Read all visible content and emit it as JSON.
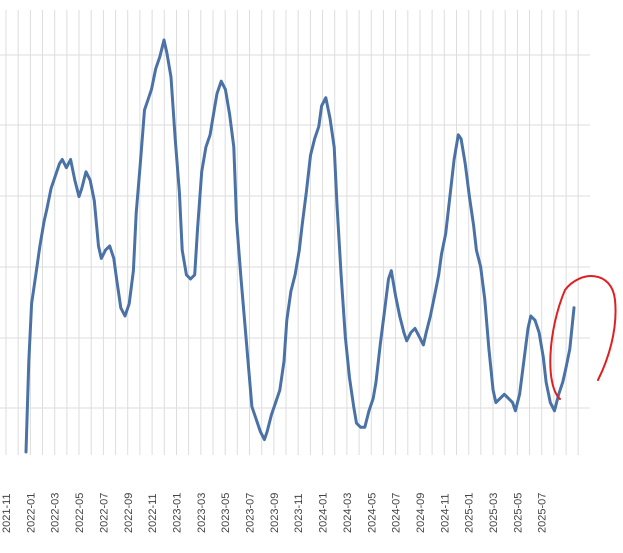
{
  "chart_data": {
    "type": "line",
    "title": "",
    "xlabel": "",
    "ylabel": "",
    "grid": true,
    "colors": {
      "line": "#4a72a6",
      "grid": "#dddddd",
      "annotation": "#e02020"
    },
    "x_tick_labels": [
      "2021-11",
      "2022-01",
      "2022-03",
      "2022-05",
      "2022-07",
      "2022-09",
      "2022-11",
      "2023-01",
      "2023-03",
      "2023-05",
      "2023-07",
      "2023-09",
      "2023-11",
      "2024-01",
      "2024-03",
      "2024-05",
      "2024-07",
      "2024-09",
      "2024-11",
      "2025-01",
      "2025-03",
      "2025-05",
      "2025-07"
    ],
    "y_range_relative": [
      0,
      1
    ],
    "series": [
      {
        "values_relative": [
          [
            2022.05,
            0.0
          ],
          [
            2022.07,
            0.22
          ],
          [
            2022.09,
            0.36
          ],
          [
            2022.12,
            0.43
          ],
          [
            2022.15,
            0.5
          ],
          [
            2022.18,
            0.56
          ],
          [
            2022.2,
            0.59
          ],
          [
            2022.23,
            0.64
          ],
          [
            2022.26,
            0.67
          ],
          [
            2022.29,
            0.7
          ],
          [
            2022.31,
            0.71
          ],
          [
            2022.34,
            0.69
          ],
          [
            2022.37,
            0.71
          ],
          [
            2022.4,
            0.66
          ],
          [
            2022.43,
            0.62
          ],
          [
            2022.45,
            0.64
          ],
          [
            2022.48,
            0.68
          ],
          [
            2022.51,
            0.66
          ],
          [
            2022.54,
            0.61
          ],
          [
            2022.57,
            0.5
          ],
          [
            2022.59,
            0.47
          ],
          [
            2022.62,
            0.49
          ],
          [
            2022.65,
            0.5
          ],
          [
            2022.68,
            0.47
          ],
          [
            2022.7,
            0.42
          ],
          [
            2022.73,
            0.35
          ],
          [
            2022.76,
            0.33
          ],
          [
            2022.79,
            0.36
          ],
          [
            2022.82,
            0.44
          ],
          [
            2022.84,
            0.58
          ],
          [
            2022.87,
            0.7
          ],
          [
            2022.9,
            0.83
          ],
          [
            2022.93,
            0.86
          ],
          [
            2022.95,
            0.88
          ],
          [
            2022.98,
            0.93
          ],
          [
            2023.01,
            0.96
          ],
          [
            2023.04,
            1.0
          ],
          [
            2023.06,
            0.97
          ],
          [
            2023.09,
            0.91
          ],
          [
            2023.12,
            0.76
          ],
          [
            2023.15,
            0.63
          ],
          [
            2023.17,
            0.49
          ],
          [
            2023.2,
            0.43
          ],
          [
            2023.23,
            0.42
          ],
          [
            2023.26,
            0.43
          ],
          [
            2023.28,
            0.54
          ],
          [
            2023.31,
            0.68
          ],
          [
            2023.34,
            0.74
          ],
          [
            2023.37,
            0.77
          ],
          [
            2023.4,
            0.83
          ],
          [
            2023.42,
            0.87
          ],
          [
            2023.45,
            0.9
          ],
          [
            2023.48,
            0.88
          ],
          [
            2023.51,
            0.82
          ],
          [
            2023.54,
            0.74
          ],
          [
            2023.56,
            0.56
          ],
          [
            2023.59,
            0.43
          ],
          [
            2023.62,
            0.31
          ],
          [
            2023.65,
            0.19
          ],
          [
            2023.67,
            0.11
          ],
          [
            2023.7,
            0.08
          ],
          [
            2023.73,
            0.05
          ],
          [
            2023.76,
            0.03
          ],
          [
            2023.78,
            0.05
          ],
          [
            2023.81,
            0.09
          ],
          [
            2023.84,
            0.12
          ],
          [
            2023.87,
            0.15
          ],
          [
            2023.9,
            0.22
          ],
          [
            2023.92,
            0.32
          ],
          [
            2023.95,
            0.39
          ],
          [
            2023.98,
            0.43
          ],
          [
            2024.01,
            0.49
          ],
          [
            2024.03,
            0.55
          ],
          [
            2024.06,
            0.63
          ],
          [
            2024.09,
            0.72
          ],
          [
            2024.12,
            0.76
          ],
          [
            2024.15,
            0.79
          ],
          [
            2024.17,
            0.84
          ],
          [
            2024.2,
            0.86
          ],
          [
            2024.23,
            0.81
          ],
          [
            2024.26,
            0.74
          ],
          [
            2024.28,
            0.6
          ],
          [
            2024.31,
            0.43
          ],
          [
            2024.34,
            0.28
          ],
          [
            2024.37,
            0.18
          ],
          [
            2024.4,
            0.11
          ],
          [
            2024.42,
            0.07
          ],
          [
            2024.45,
            0.06
          ],
          [
            2024.48,
            0.06
          ],
          [
            2024.51,
            0.1
          ],
          [
            2024.54,
            0.13
          ],
          [
            2024.56,
            0.17
          ],
          [
            2024.59,
            0.26
          ],
          [
            2024.62,
            0.34
          ],
          [
            2024.65,
            0.42
          ],
          [
            2024.67,
            0.44
          ],
          [
            2024.7,
            0.38
          ],
          [
            2024.73,
            0.33
          ],
          [
            2024.76,
            0.29
          ],
          [
            2024.78,
            0.27
          ],
          [
            2024.81,
            0.29
          ],
          [
            2024.84,
            0.3
          ],
          [
            2024.87,
            0.28
          ],
          [
            2024.9,
            0.26
          ],
          [
            2024.92,
            0.29
          ],
          [
            2024.95,
            0.33
          ],
          [
            2024.98,
            0.38
          ],
          [
            2025.01,
            0.43
          ],
          [
            2025.03,
            0.48
          ],
          [
            2025.06,
            0.53
          ],
          [
            2025.09,
            0.62
          ],
          [
            2025.12,
            0.71
          ],
          [
            2025.15,
            0.77
          ],
          [
            2025.17,
            0.76
          ],
          [
            2025.2,
            0.7
          ],
          [
            2025.23,
            0.62
          ],
          [
            2025.26,
            0.55
          ],
          [
            2025.28,
            0.49
          ],
          [
            2025.31,
            0.45
          ],
          [
            2025.34,
            0.37
          ],
          [
            2025.37,
            0.25
          ],
          [
            2025.4,
            0.15
          ],
          [
            2025.42,
            0.12
          ],
          [
            2025.45,
            0.13
          ],
          [
            2025.48,
            0.14
          ],
          [
            2025.51,
            0.13
          ],
          [
            2025.54,
            0.12
          ],
          [
            2025.56,
            0.1
          ],
          [
            2025.59,
            0.14
          ],
          [
            2025.62,
            0.22
          ],
          [
            2025.65,
            0.3
          ],
          [
            2025.67,
            0.33
          ],
          [
            2025.7,
            0.32
          ],
          [
            2025.73,
            0.29
          ],
          [
            2025.76,
            0.23
          ],
          [
            2025.78,
            0.17
          ],
          [
            2025.81,
            0.12
          ],
          [
            2025.84,
            0.1
          ],
          [
            2025.87,
            0.14
          ],
          [
            2025.9,
            0.17
          ],
          [
            2025.92,
            0.2
          ],
          [
            2025.95,
            0.25
          ],
          [
            2025.98,
            0.35
          ]
        ]
      }
    ],
    "annotations": [
      {
        "type": "hand-drawn-circle",
        "color": "#e02020",
        "around": "latest values (2025-07)"
      }
    ]
  }
}
